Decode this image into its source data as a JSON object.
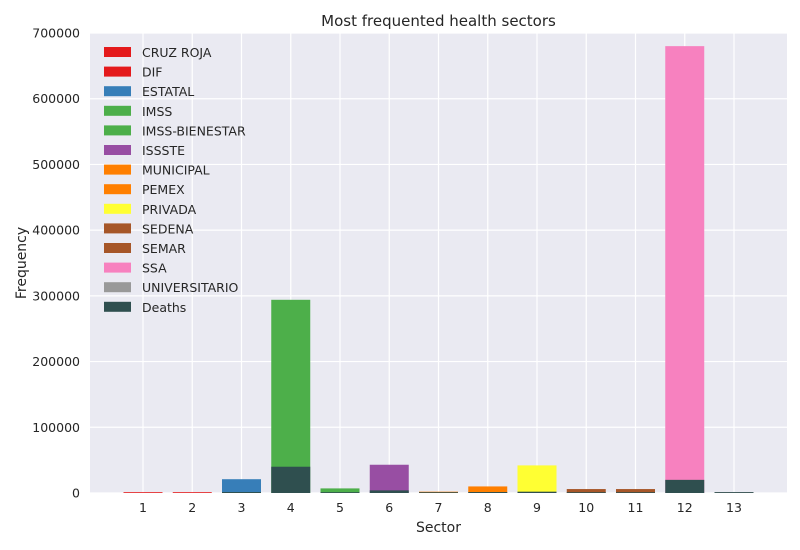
{
  "chart_data": {
    "type": "bar",
    "title": "Most frequented health sectors",
    "xlabel": "Sector",
    "ylabel": "Frequency",
    "ylim": [
      0,
      700000
    ],
    "yticks": [
      "0",
      "100000",
      "200000",
      "300000",
      "400000",
      "500000",
      "600000",
      "700000"
    ],
    "categories": [
      "1",
      "2",
      "3",
      "4",
      "5",
      "6",
      "7",
      "8",
      "9",
      "10",
      "11",
      "12",
      "13"
    ],
    "legend_position": "top-left",
    "grid": true,
    "series": [
      {
        "name": "CRUZ ROJA",
        "color": "#e41a1c",
        "values": [
          300,
          0,
          0,
          0,
          0,
          0,
          0,
          0,
          0,
          0,
          0,
          0,
          0
        ]
      },
      {
        "name": "DIF",
        "color": "#e41a1c",
        "values": [
          0,
          500,
          0,
          0,
          0,
          0,
          0,
          0,
          0,
          0,
          0,
          0,
          0
        ]
      },
      {
        "name": "ESTATAL",
        "color": "#377eb8",
        "values": [
          0,
          0,
          21000,
          0,
          0,
          0,
          0,
          0,
          0,
          0,
          0,
          0,
          0
        ]
      },
      {
        "name": "IMSS",
        "color": "#4daf4a",
        "values": [
          0,
          0,
          0,
          294000,
          0,
          0,
          0,
          0,
          0,
          0,
          0,
          0,
          0
        ]
      },
      {
        "name": "IMSS-BIENESTAR",
        "color": "#4daf4a",
        "values": [
          0,
          0,
          0,
          0,
          7000,
          0,
          0,
          0,
          0,
          0,
          0,
          0,
          0
        ]
      },
      {
        "name": "ISSSTE",
        "color": "#984ea3",
        "values": [
          0,
          0,
          0,
          0,
          0,
          43000,
          0,
          0,
          0,
          0,
          0,
          0,
          0
        ]
      },
      {
        "name": "MUNICIPAL",
        "color": "#ff7f00",
        "values": [
          0,
          0,
          0,
          0,
          0,
          0,
          2000,
          0,
          0,
          0,
          0,
          0,
          0
        ]
      },
      {
        "name": "PEMEX",
        "color": "#ff7f00",
        "values": [
          0,
          0,
          0,
          0,
          0,
          0,
          0,
          10000,
          0,
          0,
          0,
          0,
          0
        ]
      },
      {
        "name": "PRIVADA",
        "color": "#ffff33",
        "values": [
          0,
          0,
          0,
          0,
          0,
          0,
          0,
          0,
          42000,
          0,
          0,
          0,
          0
        ]
      },
      {
        "name": "SEDENA",
        "color": "#a65628",
        "values": [
          0,
          0,
          0,
          0,
          0,
          0,
          0,
          0,
          0,
          6000,
          0,
          0,
          0
        ]
      },
      {
        "name": "SEMAR",
        "color": "#a65628",
        "values": [
          0,
          0,
          0,
          0,
          0,
          0,
          0,
          0,
          0,
          0,
          6000,
          0,
          0
        ]
      },
      {
        "name": "SSA",
        "color": "#f781bf",
        "values": [
          0,
          0,
          0,
          0,
          0,
          0,
          0,
          0,
          0,
          0,
          0,
          680000,
          0
        ]
      },
      {
        "name": "UNIVERSITARIO",
        "color": "#999999",
        "values": [
          0,
          0,
          0,
          0,
          0,
          0,
          0,
          0,
          0,
          0,
          0,
          0,
          1500
        ]
      },
      {
        "name": "Deaths",
        "color": "#2f4f4f",
        "values": [
          0,
          0,
          1500,
          40000,
          1000,
          4000,
          300,
          1500,
          2000,
          1000,
          1000,
          20000,
          200
        ]
      }
    ]
  }
}
